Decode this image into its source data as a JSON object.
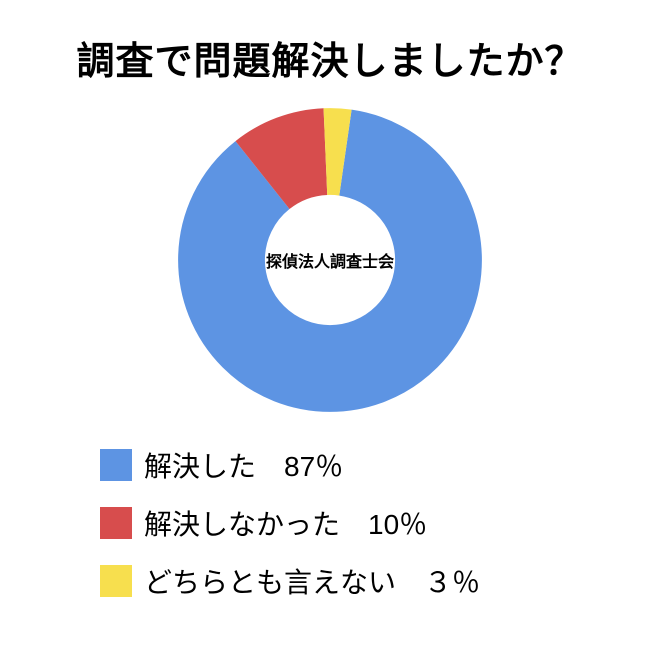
{
  "title": "調査で問題解決しましたか？",
  "chart": {
    "type": "donut",
    "center_label": "探偵法人調査士会",
    "background": "#ffffff",
    "inner_radius_ratio": 0.42,
    "segments": [
      {
        "label": "解決した",
        "value": 87,
        "color": "#5d94e3",
        "start_pct": 0
      },
      {
        "label": "解決しなかった",
        "value": 10,
        "color": "#d74d4d",
        "start_pct": 87
      },
      {
        "label": "どちらとも言えない",
        "value": 3,
        "color": "#f7df4e",
        "start_pct": 97
      }
    ]
  },
  "legend": {
    "items": [
      {
        "swatch": "#5d94e3",
        "text": "解決した　87％"
      },
      {
        "swatch": "#d74d4d",
        "text": "解決しなかった　10％"
      },
      {
        "swatch": "#f7df4e",
        "text": "どちらとも言えない　３％"
      }
    ]
  }
}
